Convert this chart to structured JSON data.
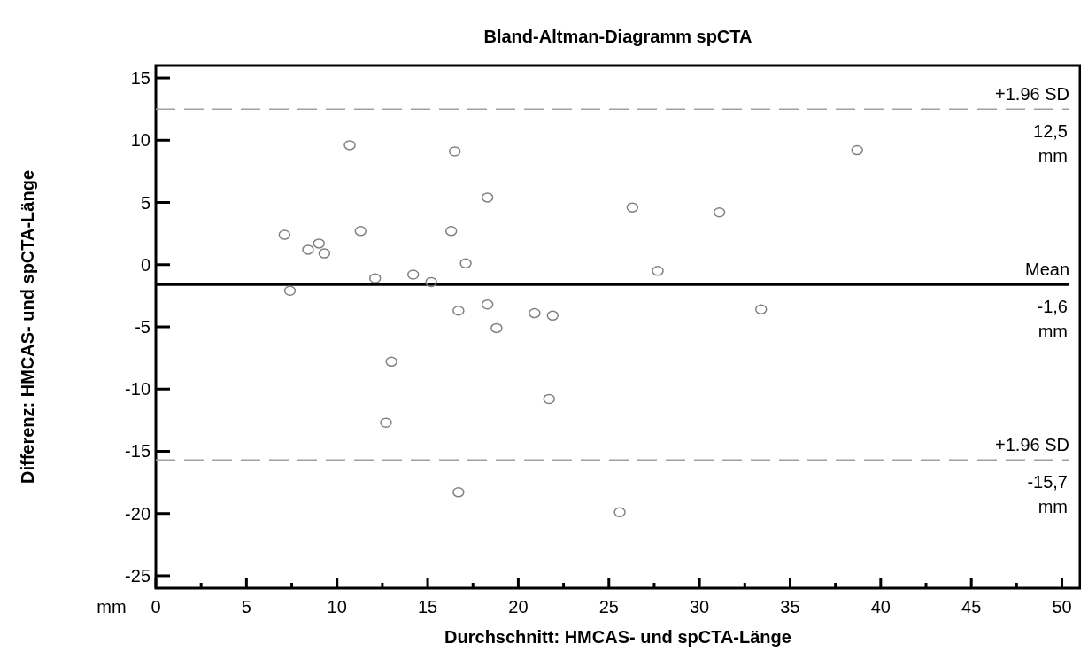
{
  "chart_data": {
    "type": "scatter",
    "title": "Bland-Altman-Diagramm spCTA",
    "xlabel": "Durchschnitt: HMCAS- und spCTA-Länge",
    "ylabel": "Differenz: HMCAS- und spCTA-Länge",
    "xlim": [
      0,
      51
    ],
    "ylim": [
      -26,
      16
    ],
    "xticks": [
      0,
      {
        "value": 2.5,
        "label": null
      },
      5,
      {
        "value": 7.5,
        "label": null
      },
      10,
      {
        "value": 12.5,
        "label": null
      },
      15,
      {
        "value": 17.5,
        "label": null
      },
      20,
      {
        "value": 22.5,
        "label": null
      },
      25,
      {
        "value": 27.5,
        "label": null
      },
      30,
      {
        "value": 32.5,
        "label": null
      },
      35,
      {
        "value": 37.5,
        "label": null
      },
      40,
      {
        "value": 42.5,
        "label": null
      },
      45,
      {
        "value": 47.5,
        "label": null
      },
      50
    ],
    "yticks": [
      -25,
      -20,
      -15,
      -10,
      -5,
      0,
      5,
      10,
      15
    ],
    "grid": false,
    "marker": "circle",
    "series": [
      {
        "color": "#808080",
        "x": [
          7.1,
          7.4,
          8.4,
          9.0,
          9.3,
          10.7,
          11.3,
          12.1,
          14.2,
          15.2,
          16.5,
          16.3,
          17.1,
          18.3,
          16.7,
          18.3,
          18.8,
          20.9,
          21.9,
          13.0,
          12.7,
          21.7,
          16.7,
          38.7,
          26.3,
          31.1,
          27.7,
          33.4,
          25.6
        ],
        "values": [
          2.4,
          -2.1,
          1.2,
          1.7,
          0.9,
          9.6,
          2.7,
          -1.1,
          -0.8,
          -1.4,
          9.1,
          2.7,
          0.1,
          5.4,
          -3.7,
          -3.2,
          -5.1,
          -3.9,
          -4.1,
          -7.8,
          -12.7,
          -10.8,
          -18.3,
          9.2,
          4.6,
          4.2,
          -0.5,
          -3.6,
          -19.9
        ]
      }
    ],
    "ref_lines": [
      {
        "axis": "y",
        "value": 12.5,
        "label": "+1.96 SD",
        "line_style": "dashed",
        "color": "#a0a0a0"
      },
      {
        "axis": "y",
        "value": -1.6,
        "label": "Mean",
        "line_style": "solid",
        "color": "#000000"
      },
      {
        "axis": "y",
        "value": -15.7,
        "label": "+1.96 SD",
        "line_style": "dashed",
        "color": "#a0a0a0"
      }
    ],
    "annotations": [
      {
        "text": "12,5 mm",
        "y": 12.5
      },
      {
        "text": "-1,6 mm",
        "y": -1.6
      },
      {
        "text": "-15,7 mm",
        "y": -15.7
      },
      "mm"
    ]
  }
}
